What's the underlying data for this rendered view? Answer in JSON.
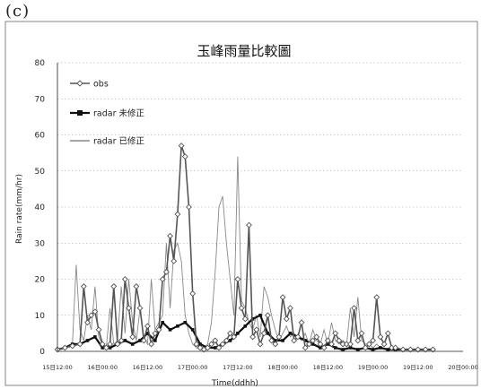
{
  "panel_label": "(c)",
  "chart_data": {
    "type": "line",
    "title": "玉峰雨量比較圖",
    "xlabel": "Time(ddhh)",
    "ylabel": "Rain rate(mm/hr)",
    "ylim": [
      0,
      80
    ],
    "yticks": [
      0,
      10,
      20,
      30,
      40,
      50,
      60,
      70,
      80
    ],
    "xtick_labels": [
      "15日12:00",
      "16日00:00",
      "16日12:00",
      "17日00:00",
      "17日12:00",
      "18日00:00",
      "18日12:00",
      "19日00:00",
      "19日12:00",
      "20日00:00"
    ],
    "time_unit": "hour",
    "xlim": [
      0,
      108
    ],
    "grid": true,
    "legend_position": "top-left",
    "series": [
      {
        "name": "obs",
        "color": "#555555",
        "marker": "diamond",
        "x": [
          0,
          2,
          4,
          6,
          7,
          8,
          9,
          10,
          11,
          12,
          13,
          14,
          15,
          16,
          17,
          18,
          19,
          20,
          21,
          22,
          23,
          24,
          25,
          26,
          27,
          28,
          29,
          30,
          31,
          32,
          33,
          34,
          35,
          36,
          37,
          38,
          39,
          40,
          41,
          42,
          43,
          44,
          45,
          46,
          47,
          48,
          49,
          50,
          51,
          52,
          53,
          54,
          55,
          56,
          57,
          58,
          59,
          60,
          61,
          62,
          63,
          64,
          65,
          66,
          67,
          68,
          69,
          70,
          71,
          72,
          73,
          74,
          75,
          76,
          77,
          78,
          79,
          80,
          81,
          82,
          83,
          84,
          85,
          86,
          87,
          88,
          89,
          90,
          92,
          94,
          96,
          98,
          100
        ],
        "y": [
          0.5,
          1,
          1.5,
          2,
          18,
          8,
          10,
          11,
          6,
          2,
          1,
          2,
          18,
          2,
          3,
          20,
          12,
          4,
          18,
          12,
          3,
          7,
          2,
          5,
          6,
          20,
          22,
          32,
          25,
          38,
          57,
          54,
          40,
          16,
          2,
          1,
          0.5,
          1,
          2,
          3,
          1,
          2,
          3,
          5,
          4,
          20,
          12,
          9,
          35,
          4,
          6,
          2,
          5,
          10,
          3,
          2,
          4,
          15,
          9,
          12,
          3,
          4,
          8,
          1,
          2,
          3,
          4,
          2,
          1,
          3,
          2,
          5,
          3,
          2,
          2,
          2,
          12,
          3,
          5,
          1,
          2,
          3,
          15,
          4,
          2,
          5,
          1,
          1,
          0.5,
          0.5,
          0.5,
          0.5,
          0.5
        ]
      },
      {
        "name": "radar 未修正",
        "color": "#111111",
        "marker": "square",
        "x": [
          0,
          2,
          4,
          6,
          8,
          10,
          12,
          14,
          16,
          18,
          20,
          22,
          24,
          26,
          28,
          30,
          32,
          34,
          36,
          38,
          40,
          42,
          44,
          46,
          48,
          50,
          52,
          54,
          56,
          58,
          60,
          62,
          64,
          66,
          68,
          70,
          72,
          74,
          76,
          78,
          80,
          82,
          84,
          86,
          88,
          90,
          92,
          94,
          96,
          98,
          100
        ],
        "y": [
          0.5,
          1,
          2,
          2,
          3,
          4,
          1,
          1,
          2,
          3,
          2,
          3,
          5,
          3,
          8,
          6,
          7,
          8,
          6,
          2,
          1,
          1,
          2,
          3,
          5,
          7,
          9,
          10,
          5,
          3,
          3,
          5,
          4,
          3,
          2,
          1,
          2,
          1,
          0.5,
          1,
          0.5,
          1,
          0.5,
          1,
          0.5,
          0.5,
          0.5,
          0.5,
          0.5,
          0.5,
          0.5
        ]
      },
      {
        "name": "radar 已修正",
        "color": "#888888",
        "marker": "none",
        "x": [
          0,
          2,
          4,
          5,
          6,
          7,
          8,
          9,
          10,
          11,
          12,
          13,
          14,
          15,
          16,
          17,
          18,
          19,
          20,
          21,
          22,
          23,
          24,
          25,
          26,
          27,
          28,
          29,
          30,
          31,
          32,
          33,
          34,
          35,
          36,
          37,
          38,
          39,
          40,
          41,
          42,
          43,
          44,
          45,
          46,
          47,
          48,
          49,
          50,
          51,
          52,
          53,
          54,
          55,
          56,
          57,
          58,
          59,
          60,
          61,
          62,
          63,
          64,
          65,
          66,
          67,
          68,
          69,
          70,
          71,
          72,
          73,
          74,
          75,
          76,
          77,
          78,
          79,
          80,
          81,
          82,
          83,
          84,
          85,
          86,
          88,
          90,
          92,
          94,
          96,
          98,
          100
        ],
        "y": [
          0.5,
          1,
          2,
          24,
          6,
          3,
          10,
          6,
          18,
          4,
          2,
          1,
          12,
          2,
          3,
          18,
          5,
          20,
          8,
          3,
          12,
          4,
          2,
          20,
          6,
          8,
          10,
          30,
          12,
          28,
          30,
          25,
          10,
          5,
          2,
          1,
          0.5,
          1,
          2,
          8,
          22,
          40,
          43,
          30,
          20,
          10,
          54,
          14,
          12,
          8,
          6,
          10,
          4,
          18,
          15,
          10,
          6,
          3,
          5,
          7,
          4,
          5,
          4,
          3,
          5,
          2,
          6,
          3,
          2,
          6,
          2,
          8,
          3,
          2,
          3,
          2,
          12,
          4,
          15,
          3,
          2,
          2,
          1,
          2,
          1,
          0.5,
          0.5,
          0.5,
          0.5,
          0.5,
          0.5,
          0.5
        ]
      }
    ]
  }
}
